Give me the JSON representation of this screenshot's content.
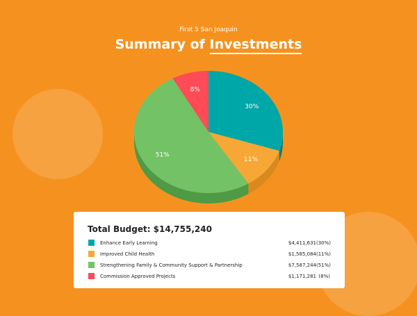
{
  "header": {
    "org": "First 5 San Joaquin",
    "title_prefix": "Summary of",
    "title_emph": "Investments"
  },
  "chart_data": {
    "type": "pie",
    "title": "Summary of Investments",
    "labels": [
      "Enhance Early Learning",
      "Improved Child Health",
      "Strengthening Family & Community Support & Partnership",
      "Commission Approved Projects"
    ],
    "values": [
      30,
      11,
      51,
      8
    ],
    "slice_labels": [
      "30%",
      "11%",
      "51%",
      "8%"
    ],
    "colors": [
      "#00a7a8",
      "#f7a735",
      "#73c266",
      "#ff4b57"
    ],
    "side_colors": [
      "#04807f",
      "#d98a1e",
      "#4e9a45",
      "#c8323d"
    ]
  },
  "card": {
    "budget": "Total Budget: $14,755,240",
    "items": [
      {
        "label": "Enhance Early Learning",
        "amount": "$4,411,631",
        "pct": "(30%)",
        "color": "#00a7a8"
      },
      {
        "label": "Improved Child Health",
        "amount": "$1,585,084",
        "pct": "(11%)",
        "color": "#f7a735"
      },
      {
        "label": "Strengthening Family & Community Support & Partnership",
        "amount": "$7,587,244",
        "pct": "(51%)",
        "color": "#73c266"
      },
      {
        "label": "Commission Approved Projects",
        "amount": "$1,171,281",
        "pct": "(8%)",
        "color": "#ff4b57"
      }
    ]
  }
}
